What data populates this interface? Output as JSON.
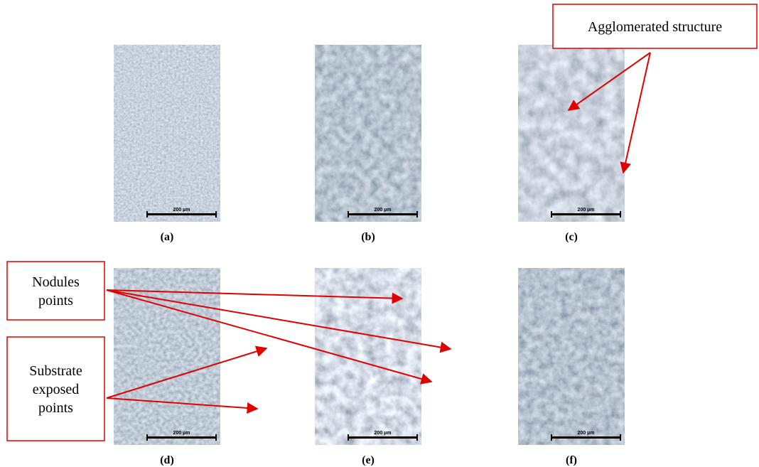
{
  "panels": [
    {
      "label": "(a)",
      "scale_bar": "200 µm"
    },
    {
      "label": "(b)",
      "scale_bar": "200 µm"
    },
    {
      "label": "(c)",
      "scale_bar": "200 µm"
    },
    {
      "label": "(d)",
      "scale_bar": "200 µm"
    },
    {
      "label": "(e)",
      "scale_bar": "200 µm"
    },
    {
      "label": "(f)",
      "scale_bar": "200 µm"
    }
  ],
  "annotations": [
    {
      "lines": [
        "Agglomerated structure"
      ]
    },
    {
      "lines": [
        "Nodules",
        "points"
      ]
    },
    {
      "lines": [
        "Substrate",
        "exposed",
        "points"
      ]
    }
  ]
}
